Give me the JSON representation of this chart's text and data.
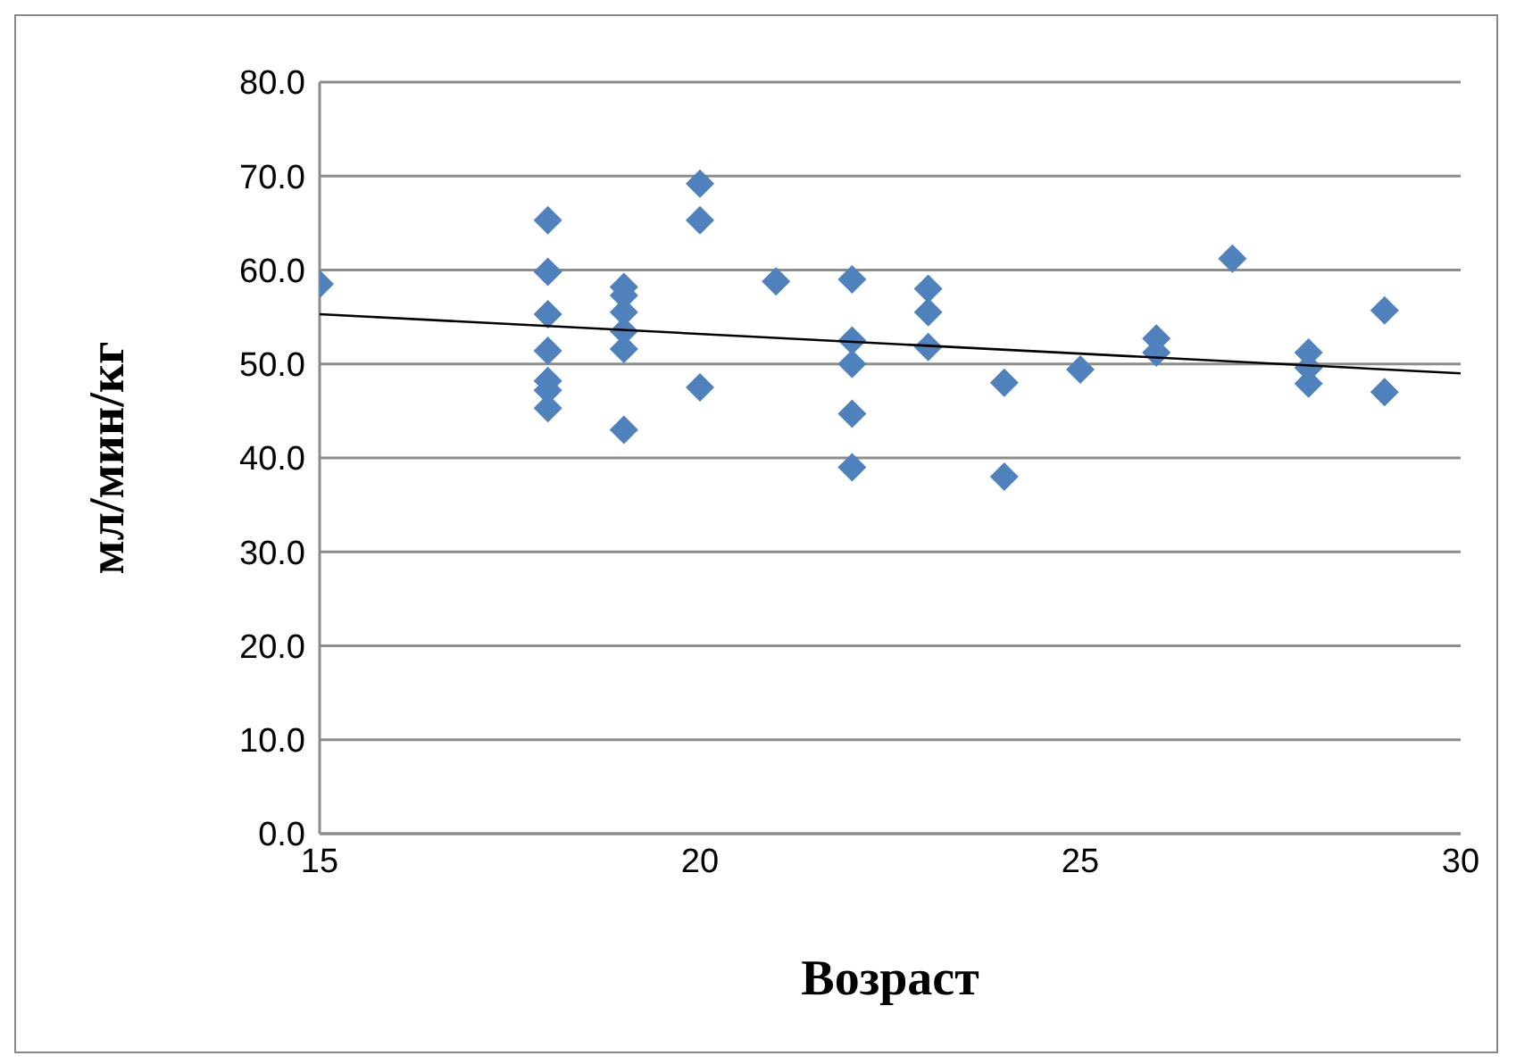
{
  "chart_data": {
    "type": "scatter",
    "xlabel": "Возраст",
    "ylabel": "мл/мин/кг",
    "xlim": [
      15,
      30
    ],
    "xticks": [
      15,
      20,
      25,
      30
    ],
    "ylim": [
      0,
      80
    ],
    "yticks": [
      {
        "value": 0,
        "label": "0.0"
      },
      {
        "value": 10,
        "label": "10.0"
      },
      {
        "value": 20,
        "label": "20.0"
      },
      {
        "value": 30,
        "label": "30.0"
      },
      {
        "value": 40,
        "label": "40.0"
      },
      {
        "value": 50,
        "label": "50.0"
      },
      {
        "value": 60,
        "label": "60.0"
      },
      {
        "value": 70,
        "label": "70.0"
      },
      {
        "value": 80,
        "label": "80.0"
      }
    ],
    "grid": "y",
    "marker": "diamond",
    "series": [
      {
        "color": "#4f81bd",
        "x": [
          15,
          18,
          18,
          18,
          18,
          18,
          18,
          18,
          19,
          19,
          19,
          19,
          19,
          19,
          20,
          20,
          20,
          21,
          22,
          22,
          22,
          22,
          22,
          23,
          23,
          23,
          24,
          24,
          25,
          26,
          26,
          27,
          28,
          28,
          28,
          29,
          29
        ],
        "values": [
          58.5,
          65.3,
          59.8,
          55.3,
          51.4,
          48.2,
          47.2,
          45.3,
          58.2,
          57.3,
          55.5,
          53.5,
          51.6,
          43.0,
          69.2,
          65.3,
          47.5,
          58.8,
          59.0,
          52.5,
          50.0,
          44.7,
          39.0,
          58.0,
          55.5,
          51.8,
          48.0,
          38.0,
          49.4,
          52.7,
          51.2,
          61.2,
          51.2,
          49.6,
          47.9,
          55.7,
          47.0
        ]
      },
      {
        "type": "line",
        "marker": "none",
        "color": "#000000",
        "x": [
          15,
          30
        ],
        "values": [
          55.3,
          49.0
        ]
      }
    ]
  }
}
